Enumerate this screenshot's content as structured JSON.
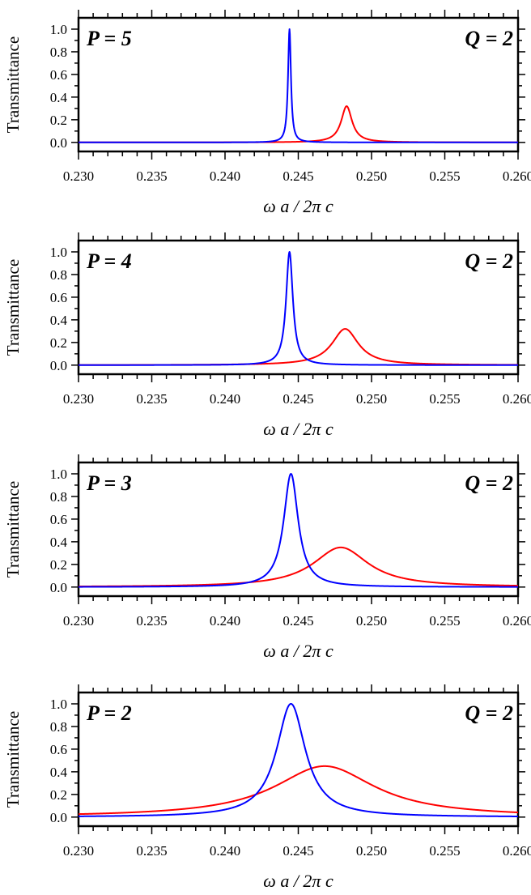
{
  "chart_data": [
    {
      "type": "line",
      "ylabel": "Transmittance",
      "xlabel": "ω a / 2π c",
      "x_ticks": [
        "0.230",
        "0.235",
        "0.240",
        "0.245",
        "0.250",
        "0.255",
        "0.260"
      ],
      "y_ticks": [
        "0.0",
        "0.2",
        "0.4",
        "0.6",
        "0.8",
        "1.0"
      ],
      "xlim": [
        0.23,
        0.26
      ],
      "ylim": [
        -0.08,
        1.1
      ],
      "left_annotation": "P = 5",
      "right_annotation": "Q = 2",
      "series": [
        {
          "color": "#0000ff",
          "shape": "lorentzian",
          "peak_x": 0.2444,
          "peak_y": 1.0,
          "half_width": 0.00012
        },
        {
          "color": "#ff0000",
          "shape": "lorentzian",
          "peak_x": 0.2483,
          "peak_y": 0.32,
          "half_width": 0.00045
        }
      ]
    },
    {
      "type": "line",
      "ylabel": "Transmittance",
      "xlabel": "ω a / 2π c",
      "x_ticks": [
        "0.230",
        "0.235",
        "0.240",
        "0.245",
        "0.250",
        "0.255",
        "0.260"
      ],
      "y_ticks": [
        "0.0",
        "0.2",
        "0.4",
        "0.6",
        "0.8",
        "1.0"
      ],
      "xlim": [
        0.23,
        0.26
      ],
      "ylim": [
        -0.08,
        1.1
      ],
      "left_annotation": "P = 4",
      "right_annotation": "Q = 2",
      "series": [
        {
          "color": "#0000ff",
          "shape": "lorentzian",
          "peak_x": 0.2444,
          "peak_y": 1.0,
          "half_width": 0.00028
        },
        {
          "color": "#ff0000",
          "shape": "lorentzian",
          "peak_x": 0.2482,
          "peak_y": 0.32,
          "half_width": 0.0011
        }
      ]
    },
    {
      "type": "line",
      "ylabel": "Transmittance",
      "xlabel": "ω a / 2π c",
      "x_ticks": [
        "0.230",
        "0.235",
        "0.240",
        "0.245",
        "0.250",
        "0.255",
        "0.260"
      ],
      "y_ticks": [
        "0.0",
        "0.2",
        "0.4",
        "0.6",
        "0.8",
        "1.0"
      ],
      "xlim": [
        0.23,
        0.26
      ],
      "ylim": [
        -0.08,
        1.1
      ],
      "left_annotation": "P = 3",
      "right_annotation": "Q = 2",
      "series": [
        {
          "color": "#0000ff",
          "shape": "lorentzian",
          "peak_x": 0.2445,
          "peak_y": 1.0,
          "half_width": 0.0006
        },
        {
          "color": "#ff0000",
          "shape": "lorentzian",
          "peak_x": 0.2479,
          "peak_y": 0.35,
          "half_width": 0.0023
        }
      ]
    },
    {
      "type": "line",
      "ylabel": "Transmittance",
      "xlabel": "ω a / 2π c",
      "x_ticks": [
        "0.230",
        "0.235",
        "0.240",
        "0.245",
        "0.250",
        "0.255",
        "0.260"
      ],
      "y_ticks": [
        "0.0",
        "0.2",
        "0.4",
        "0.6",
        "0.8",
        "1.0"
      ],
      "xlim": [
        0.23,
        0.26
      ],
      "ylim": [
        -0.08,
        1.1
      ],
      "left_annotation": "P = 2",
      "right_annotation": "Q = 2",
      "series": [
        {
          "color": "#0000ff",
          "shape": "lorentzian",
          "peak_x": 0.2445,
          "peak_y": 1.0,
          "half_width": 0.0012
        },
        {
          "color": "#ff0000",
          "shape": "lorentzian",
          "peak_x": 0.2468,
          "peak_y": 0.45,
          "half_width": 0.0042
        }
      ]
    }
  ]
}
